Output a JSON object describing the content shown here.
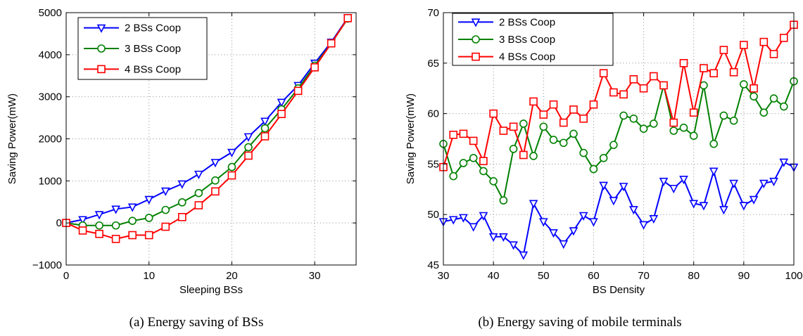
{
  "chart_data": [
    {
      "type": "line",
      "title": "",
      "xlabel": "Sleeping BSs",
      "ylabel": "Saving Power(mW)",
      "caption": "(a) Energy saving of BSs",
      "xlim": [
        0,
        35
      ],
      "ylim": [
        -1000,
        5000
      ],
      "xticks": [
        0,
        10,
        20,
        30
      ],
      "yticks": [
        -1000,
        0,
        1000,
        2000,
        3000,
        4000,
        5000
      ],
      "ytick_labels": [
        "−1000",
        "0",
        "1000",
        "2000",
        "3000",
        "4000",
        "5000"
      ],
      "grid": true,
      "legend_position": "top-left",
      "x": [
        0,
        2,
        4,
        6,
        8,
        10,
        12,
        14,
        16,
        18,
        20,
        22,
        24,
        26,
        28,
        30,
        32,
        34
      ],
      "series": [
        {
          "name": "2 BSs Coop",
          "color": "#0000ff",
          "marker": "triangle-down",
          "values": [
            0,
            80,
            200,
            330,
            380,
            560,
            760,
            930,
            1160,
            1440,
            1680,
            2050,
            2420,
            2870,
            3270,
            3800,
            4300,
            4880
          ]
        },
        {
          "name": "3 BSs Coop",
          "color": "#008000",
          "marker": "circle",
          "values": [
            0,
            -60,
            -60,
            -60,
            50,
            120,
            310,
            490,
            710,
            1010,
            1330,
            1800,
            2250,
            2700,
            3200,
            3740,
            4270,
            4860
          ]
        },
        {
          "name": "4 BSs Coop",
          "color": "#ff0000",
          "marker": "square",
          "values": [
            0,
            -180,
            -260,
            -380,
            -290,
            -290,
            -90,
            140,
            420,
            750,
            1130,
            1600,
            2060,
            2590,
            3140,
            3700,
            4270,
            4870
          ]
        }
      ]
    },
    {
      "type": "line",
      "title": "",
      "xlabel": "BS Density",
      "ylabel": "Saving Power(mW)",
      "caption": "(b) Energy saving of mobile terminals",
      "xlim": [
        30,
        100
      ],
      "ylim": [
        45,
        70
      ],
      "xticks": [
        30,
        40,
        50,
        60,
        70,
        80,
        90,
        100
      ],
      "yticks": [
        45,
        50,
        55,
        60,
        65,
        70
      ],
      "grid": true,
      "legend_position": "top-left",
      "x": [
        30,
        32,
        34,
        36,
        38,
        40,
        42,
        44,
        46,
        48,
        50,
        52,
        54,
        56,
        58,
        60,
        62,
        64,
        66,
        68,
        70,
        72,
        74,
        76,
        78,
        80,
        82,
        84,
        86,
        88,
        90,
        92,
        94,
        96,
        98,
        100
      ],
      "series": [
        {
          "name": "2 BSs Coop",
          "color": "#0000ff",
          "marker": "triangle-down",
          "values": [
            49.3,
            49.5,
            49.7,
            48.8,
            49.9,
            47.8,
            47.8,
            47.0,
            46.0,
            51.1,
            49.3,
            48.2,
            47.1,
            48.4,
            49.9,
            49.3,
            52.9,
            51.4,
            52.8,
            50.5,
            49.0,
            49.6,
            53.3,
            52.6,
            53.5,
            51.1,
            50.9,
            54.3,
            50.5,
            53.1,
            50.9,
            51.5,
            53.1,
            53.3,
            55.2,
            54.7
          ]
        },
        {
          "name": "3 BSs Coop",
          "color": "#008000",
          "marker": "circle",
          "values": [
            57.0,
            53.8,
            55.1,
            55.6,
            54.3,
            53.3,
            51.4,
            56.5,
            59.0,
            55.8,
            58.7,
            57.4,
            57.1,
            58.0,
            56.1,
            54.5,
            55.6,
            56.9,
            59.8,
            59.5,
            58.5,
            59.0,
            62.8,
            58.3,
            58.6,
            57.8,
            62.8,
            57.0,
            59.8,
            59.3,
            62.9,
            61.7,
            60.1,
            61.5,
            60.7,
            63.2
          ]
        },
        {
          "name": "4 BSs Coop",
          "color": "#ff0000",
          "marker": "square",
          "values": [
            54.7,
            57.9,
            58.0,
            57.3,
            55.3,
            60.0,
            58.3,
            58.7,
            55.9,
            61.2,
            59.9,
            60.9,
            59.1,
            60.4,
            59.5,
            60.9,
            64.0,
            62.1,
            61.9,
            63.4,
            62.5,
            63.7,
            62.8,
            59.1,
            65.0,
            60.1,
            64.5,
            64.0,
            66.3,
            64.1,
            66.8,
            62.5,
            67.1,
            65.9,
            67.5,
            68.8
          ]
        }
      ]
    }
  ]
}
